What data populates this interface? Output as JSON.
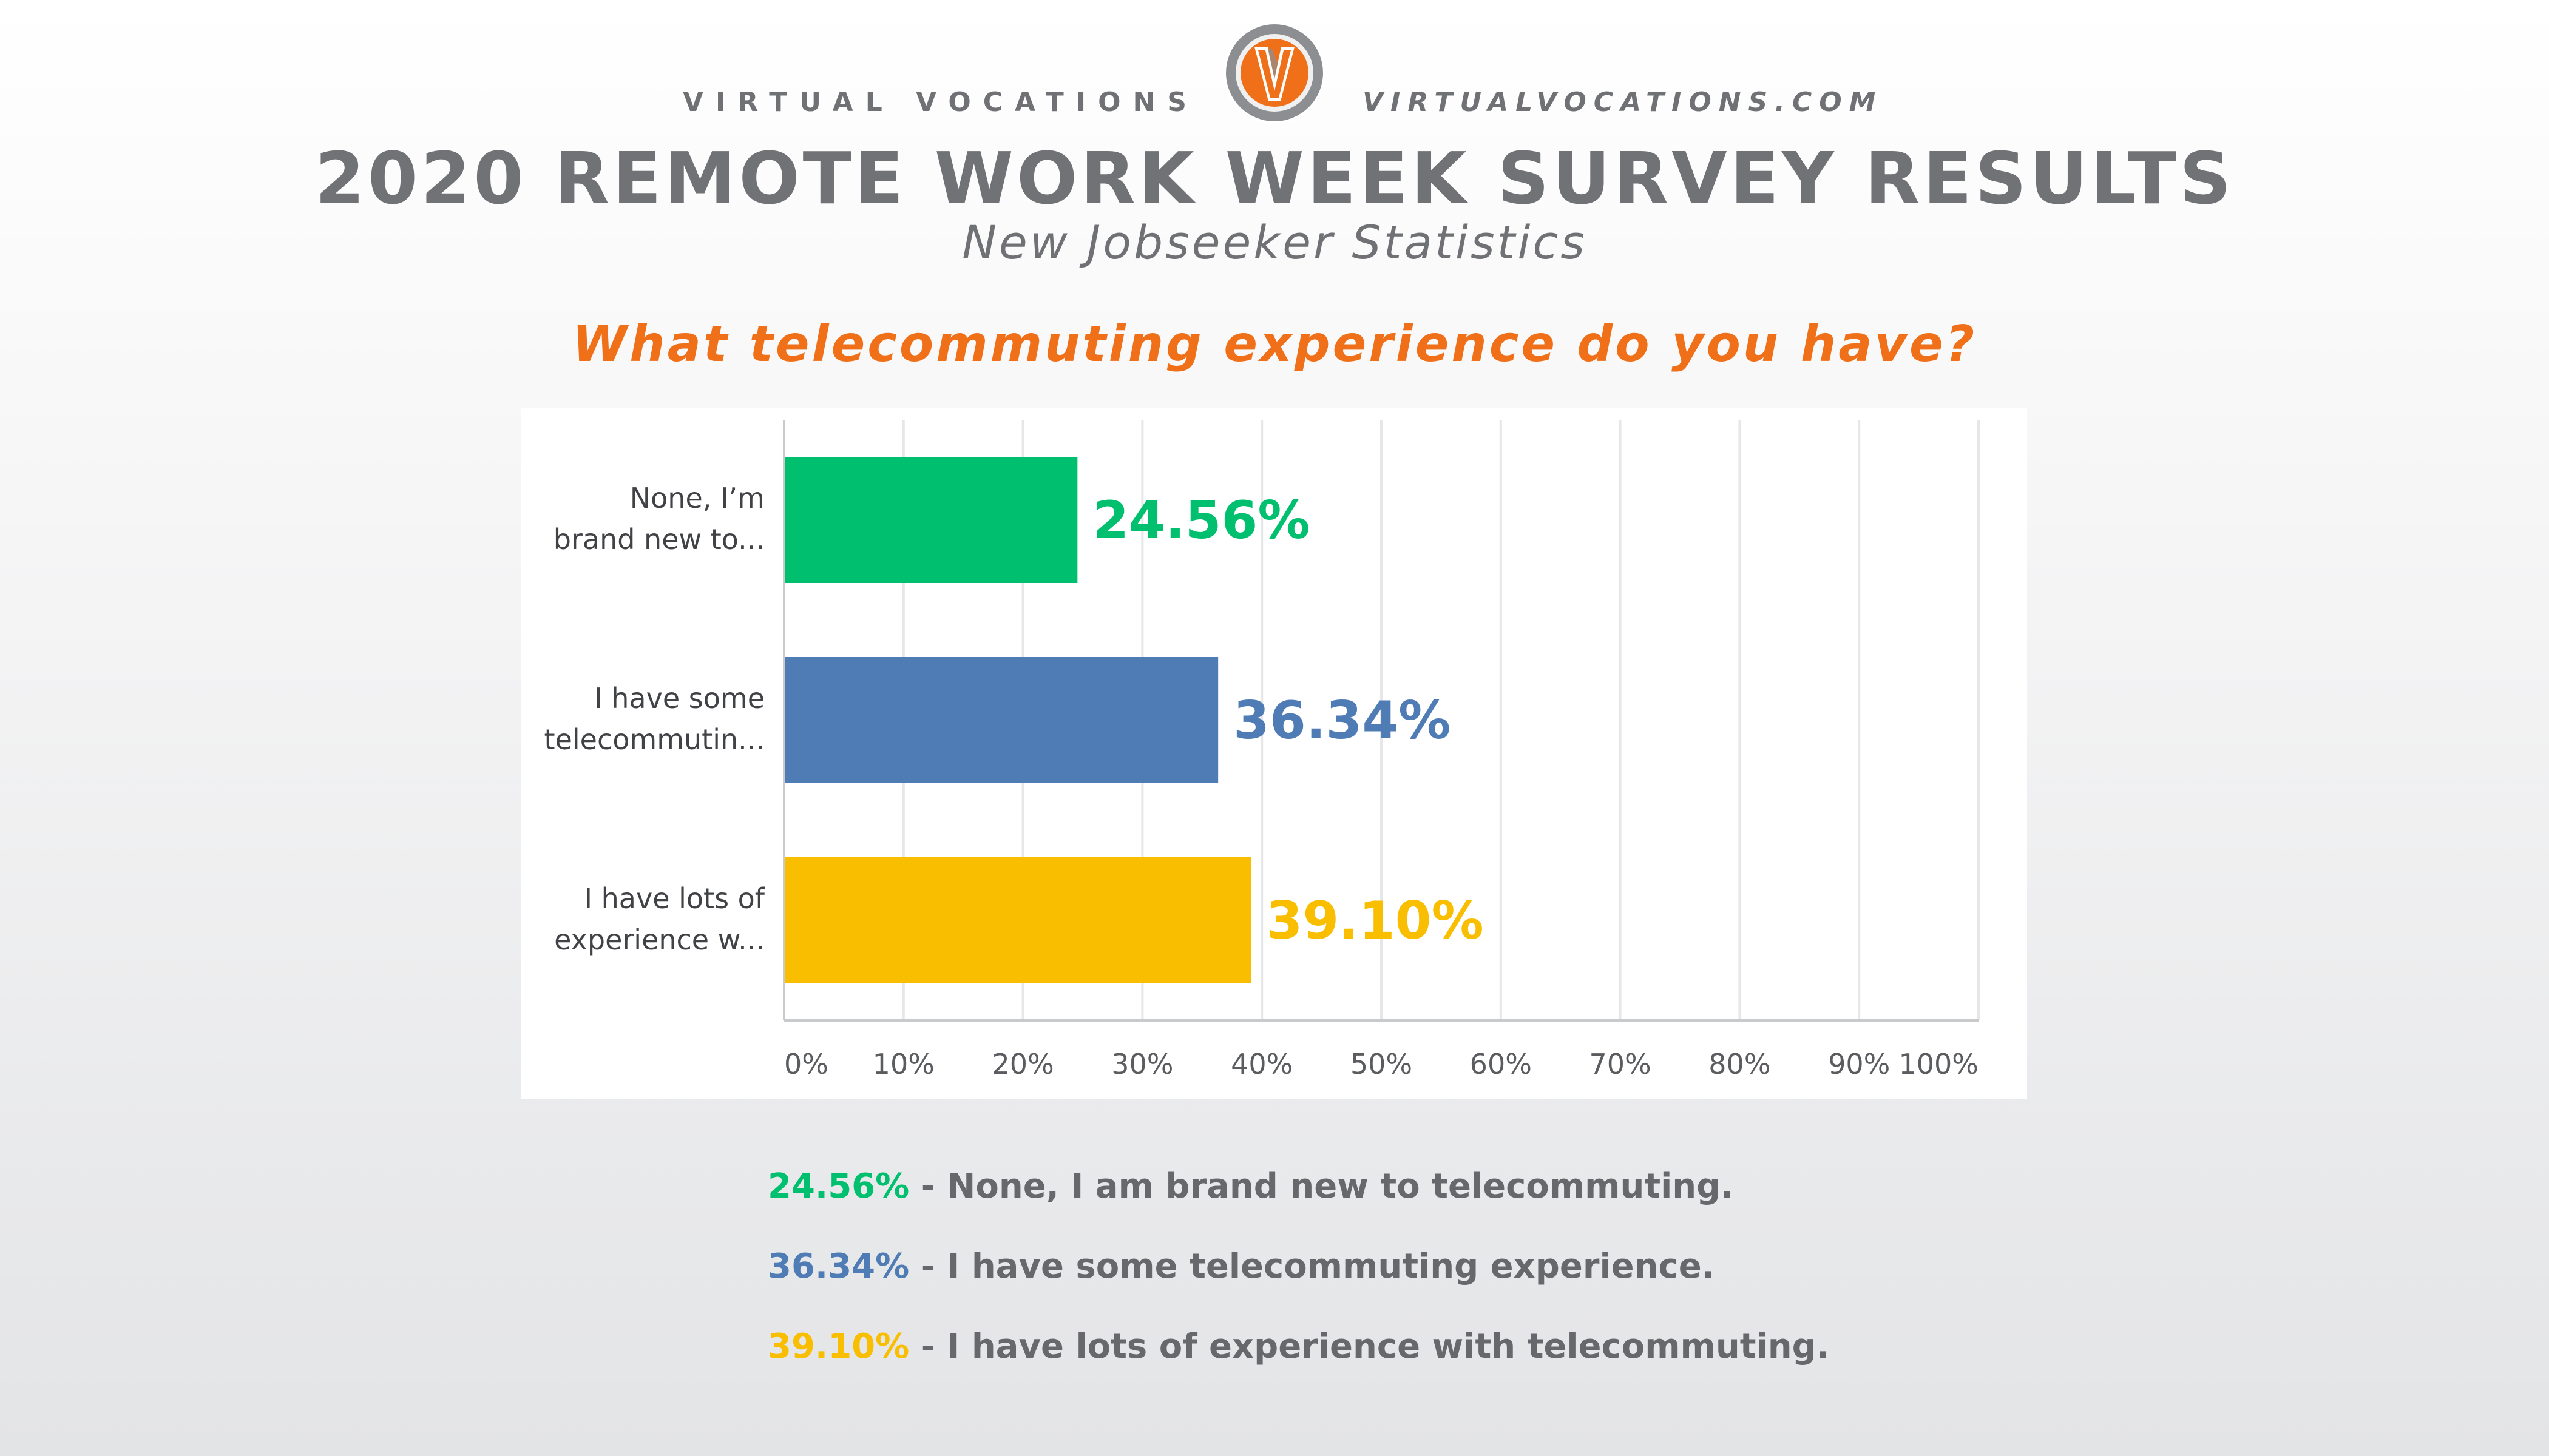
{
  "header": {
    "brand_name": "VIRTUAL VOCATIONS",
    "brand_url": "VIRTUALVOCATIONS.COM",
    "logo_icon": "virtual-vocations-v-logo-icon",
    "title": "2020 REMOTE WORK WEEK SURVEY RESULTS",
    "subtitle": "New Jobseeker Statistics",
    "question": "What telecommuting experience do you have?"
  },
  "colors": {
    "accent_orange": "#f07019",
    "green": "#00bf6f",
    "blue": "#507cb6",
    "yellow": "#f9be00",
    "text_gray": "#66686b"
  },
  "chart_data": {
    "type": "bar",
    "orientation": "horizontal",
    "categories": [
      "None, I’m brand new to...",
      "I have some telecommutin...",
      "I have lots of experience w..."
    ],
    "category_lines": [
      [
        "None, I’m",
        "brand new to..."
      ],
      [
        "I have some",
        "telecommutin..."
      ],
      [
        "I have lots of",
        "experience w..."
      ]
    ],
    "values": [
      24.56,
      36.34,
      39.1
    ],
    "data_labels": [
      "24.56%",
      "36.34%",
      "39.10%"
    ],
    "bar_colors": [
      "#00bf6f",
      "#507cb6",
      "#f9be00"
    ],
    "xlim": [
      0,
      100
    ],
    "x_ticks": [
      0,
      10,
      20,
      30,
      40,
      50,
      60,
      70,
      80,
      90,
      100
    ],
    "x_tick_labels": [
      "0%",
      "10%",
      "20%",
      "30%",
      "40%",
      "50%",
      "60%",
      "70%",
      "80%",
      "90%",
      "100%"
    ],
    "grid": true,
    "legend": "none"
  },
  "summary": [
    {
      "value": "24.56%",
      "text": " - None, I am brand new to telecommuting.",
      "color": "#00bf6f"
    },
    {
      "value": "36.34%",
      "text": " - I have some telecommuting experience.",
      "color": "#507cb6"
    },
    {
      "value": "39.10%",
      "text": " - I have lots of experience with telecommuting.",
      "color": "#f9be00"
    }
  ]
}
